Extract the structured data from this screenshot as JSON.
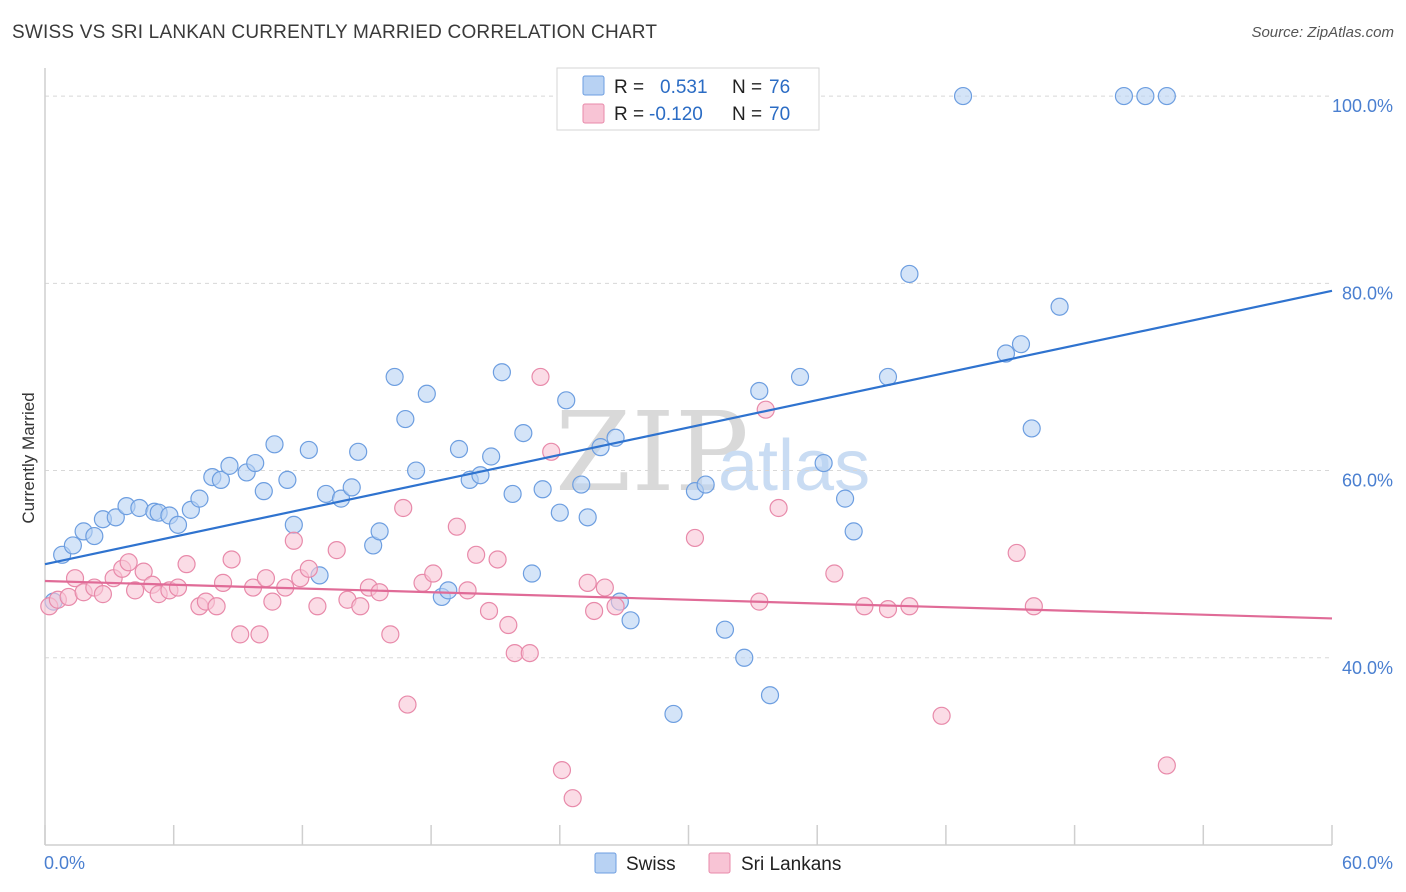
{
  "header": {
    "title": "SWISS VS SRI LANKAN CURRENTLY MARRIED CORRELATION CHART",
    "source": "Source: ZipAtlas.com"
  },
  "watermark": {
    "zip": "ZIP",
    "atlas": "atlas"
  },
  "legend": {
    "swiss": {
      "r_label": "R =",
      "r_value": "0.531",
      "n_label": "N =",
      "n_value": "76"
    },
    "sri": {
      "r_label": "R =",
      "r_value": "-0.120",
      "n_label": "N =",
      "n_value": "70"
    }
  },
  "bottom_legend": {
    "swiss": "Swiss",
    "sri": "Sri Lankans"
  },
  "colors": {
    "swiss_fill": "#b8d2f3",
    "swiss_stroke": "#6d9ee0",
    "swiss_line": "#2f73cf",
    "sri_fill": "#f8c4d5",
    "sri_stroke": "#e88aaa",
    "sri_line": "#e06b97",
    "grid": "#d8d8d8",
    "tick_label": "#4a7fd0"
  },
  "chart_data": {
    "type": "scatter",
    "title": "SWISS VS SRI LANKAN CURRENTLY MARRIED CORRELATION CHART",
    "ylabel": "Currently Married",
    "xlim": [
      0,
      60
    ],
    "ylim": [
      20,
      103
    ],
    "x_ticks": [
      "0.0%",
      "60.0%"
    ],
    "y_ticks": [
      {
        "value": 40,
        "label": "40.0%"
      },
      {
        "value": 60,
        "label": "60.0%"
      },
      {
        "value": 80,
        "label": "80.0%"
      },
      {
        "value": 100,
        "label": "100.0%"
      }
    ],
    "series": [
      {
        "name": "Swiss",
        "trend": {
          "x": [
            0,
            60
          ],
          "y": [
            50.0,
            79.2
          ]
        },
        "points": [
          [
            0.4,
            46.0
          ],
          [
            0.8,
            51.0
          ],
          [
            1.3,
            52.0
          ],
          [
            1.8,
            53.5
          ],
          [
            2.3,
            53.0
          ],
          [
            2.7,
            54.8
          ],
          [
            3.3,
            55.0
          ],
          [
            3.8,
            56.2
          ],
          [
            4.4,
            56.0
          ],
          [
            5.1,
            55.6
          ],
          [
            5.3,
            55.5
          ],
          [
            5.8,
            55.2
          ],
          [
            6.2,
            54.2
          ],
          [
            6.8,
            55.8
          ],
          [
            7.2,
            57.0
          ],
          [
            7.8,
            59.3
          ],
          [
            8.2,
            59.0
          ],
          [
            8.6,
            60.5
          ],
          [
            9.4,
            59.8
          ],
          [
            9.8,
            60.8
          ],
          [
            10.2,
            57.8
          ],
          [
            10.7,
            62.8
          ],
          [
            11.3,
            59.0
          ],
          [
            11.6,
            54.2
          ],
          [
            12.3,
            62.2
          ],
          [
            12.8,
            48.8
          ],
          [
            13.1,
            57.5
          ],
          [
            13.8,
            57.0
          ],
          [
            14.3,
            58.2
          ],
          [
            14.6,
            62.0
          ],
          [
            15.3,
            52.0
          ],
          [
            15.6,
            53.5
          ],
          [
            16.3,
            70.0
          ],
          [
            16.8,
            65.5
          ],
          [
            17.3,
            60.0
          ],
          [
            17.8,
            68.2
          ],
          [
            18.5,
            46.5
          ],
          [
            18.8,
            47.2
          ],
          [
            19.3,
            62.3
          ],
          [
            19.8,
            59.0
          ],
          [
            20.3,
            59.5
          ],
          [
            20.8,
            61.5
          ],
          [
            21.3,
            70.5
          ],
          [
            21.8,
            57.5
          ],
          [
            22.3,
            64.0
          ],
          [
            22.7,
            49.0
          ],
          [
            23.2,
            58.0
          ],
          [
            24.0,
            55.5
          ],
          [
            24.3,
            67.5
          ],
          [
            25.0,
            58.5
          ],
          [
            25.3,
            55.0
          ],
          [
            25.9,
            62.5
          ],
          [
            26.6,
            63.5
          ],
          [
            26.8,
            46.0
          ],
          [
            27.3,
            44.0
          ],
          [
            29.3,
            34.0
          ],
          [
            30.3,
            57.8
          ],
          [
            30.8,
            58.5
          ],
          [
            31.7,
            43.0
          ],
          [
            32.6,
            40.0
          ],
          [
            33.3,
            68.5
          ],
          [
            33.8,
            36.0
          ],
          [
            35.2,
            70.0
          ],
          [
            36.3,
            60.8
          ],
          [
            37.3,
            57.0
          ],
          [
            37.7,
            53.5
          ],
          [
            39.3,
            70.0
          ],
          [
            40.3,
            81.0
          ],
          [
            42.8,
            100.0
          ],
          [
            44.8,
            72.5
          ],
          [
            45.5,
            73.5
          ],
          [
            46.0,
            64.5
          ],
          [
            47.3,
            77.5
          ],
          [
            50.3,
            100.0
          ],
          [
            51.3,
            100.0
          ],
          [
            52.3,
            100.0
          ]
        ]
      },
      {
        "name": "Sri Lankans",
        "trend": {
          "x": [
            0,
            60
          ],
          "y": [
            48.2,
            44.2
          ]
        },
        "points": [
          [
            0.2,
            45.5
          ],
          [
            0.6,
            46.2
          ],
          [
            1.1,
            46.5
          ],
          [
            1.4,
            48.5
          ],
          [
            1.8,
            47.0
          ],
          [
            2.3,
            47.5
          ],
          [
            2.7,
            46.8
          ],
          [
            3.2,
            48.5
          ],
          [
            3.6,
            49.5
          ],
          [
            3.9,
            50.2
          ],
          [
            4.2,
            47.2
          ],
          [
            4.6,
            49.2
          ],
          [
            5.0,
            47.8
          ],
          [
            5.3,
            46.8
          ],
          [
            5.8,
            47.2
          ],
          [
            6.2,
            47.5
          ],
          [
            6.6,
            50.0
          ],
          [
            7.2,
            45.5
          ],
          [
            7.5,
            46.0
          ],
          [
            8.0,
            45.5
          ],
          [
            8.3,
            48.0
          ],
          [
            8.7,
            50.5
          ],
          [
            9.1,
            42.5
          ],
          [
            9.7,
            47.5
          ],
          [
            10.0,
            42.5
          ],
          [
            10.3,
            48.5
          ],
          [
            10.6,
            46.0
          ],
          [
            11.2,
            47.5
          ],
          [
            11.6,
            52.5
          ],
          [
            11.9,
            48.5
          ],
          [
            12.3,
            49.5
          ],
          [
            12.7,
            45.5
          ],
          [
            13.6,
            51.5
          ],
          [
            14.1,
            46.2
          ],
          [
            14.7,
            45.5
          ],
          [
            15.1,
            47.5
          ],
          [
            15.6,
            47.0
          ],
          [
            16.1,
            42.5
          ],
          [
            16.7,
            56.0
          ],
          [
            16.9,
            35.0
          ],
          [
            17.6,
            48.0
          ],
          [
            18.1,
            49.0
          ],
          [
            19.2,
            54.0
          ],
          [
            19.7,
            47.2
          ],
          [
            20.1,
            51.0
          ],
          [
            20.7,
            45.0
          ],
          [
            21.1,
            50.5
          ],
          [
            21.6,
            43.5
          ],
          [
            21.9,
            40.5
          ],
          [
            22.6,
            40.5
          ],
          [
            23.1,
            70.0
          ],
          [
            23.6,
            62.0
          ],
          [
            24.1,
            28.0
          ],
          [
            24.6,
            25.0
          ],
          [
            25.3,
            48.0
          ],
          [
            25.6,
            45.0
          ],
          [
            26.1,
            47.5
          ],
          [
            26.6,
            45.5
          ],
          [
            30.3,
            52.8
          ],
          [
            33.3,
            46.0
          ],
          [
            33.6,
            66.5
          ],
          [
            34.2,
            56.0
          ],
          [
            36.8,
            49.0
          ],
          [
            38.2,
            45.5
          ],
          [
            39.3,
            45.2
          ],
          [
            40.3,
            45.5
          ],
          [
            41.8,
            33.8
          ],
          [
            45.3,
            51.2
          ],
          [
            46.1,
            45.5
          ],
          [
            52.3,
            28.5
          ]
        ]
      }
    ]
  }
}
